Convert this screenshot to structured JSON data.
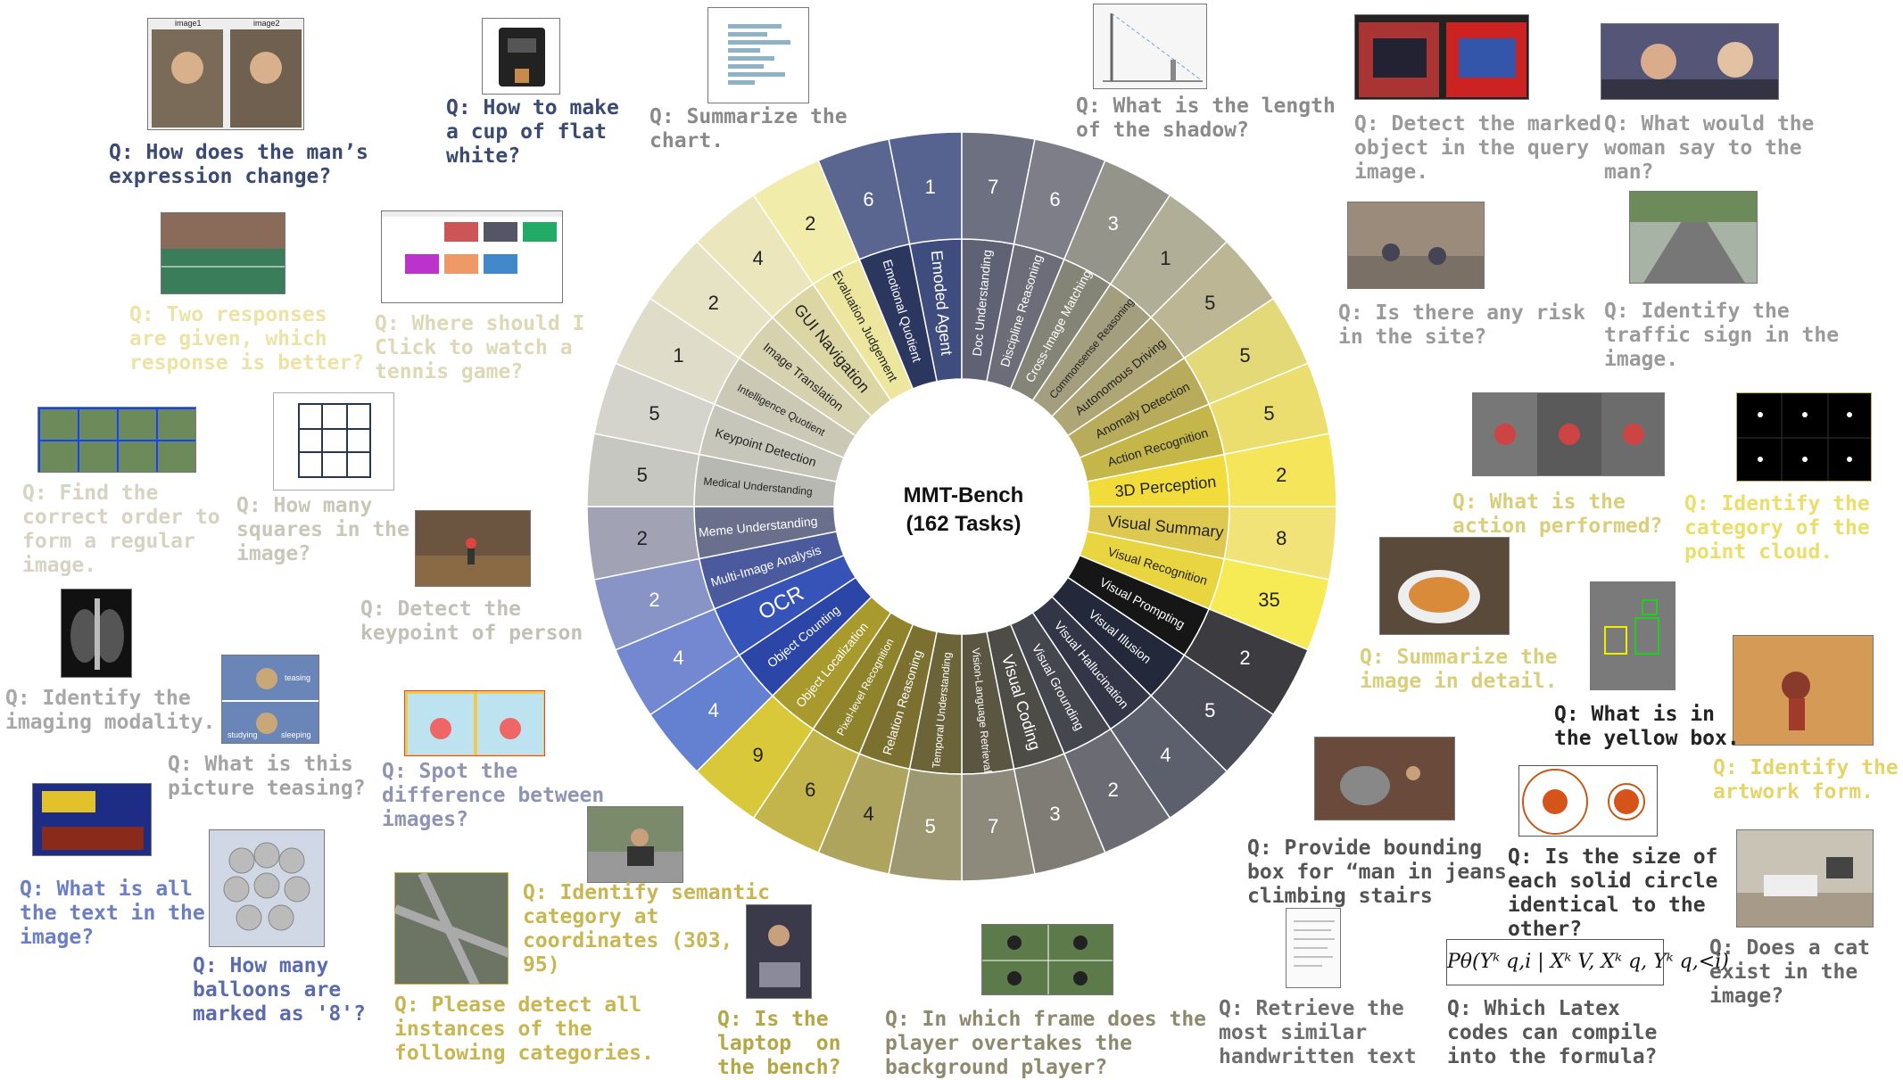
{
  "center": {
    "line1": "MMT-Bench",
    "line2": "(162 Tasks)"
  },
  "colors": {
    "dark_blue_text": "#3b4a72",
    "yellow_text": "#d9cf7a",
    "gray_text": "#8a8a8a",
    "olive_text": "#b5a646",
    "blue_text": "#6b7fc4"
  },
  "chart_data": {
    "type": "sunburst",
    "inner_ring": [
      {
        "name": "Emoded Agent",
        "outer": [
          1
        ],
        "fill": "#3e4d7d"
      },
      {
        "name": "Doc Understanding",
        "outer": [
          7
        ],
        "fill": "#5e6274"
      },
      {
        "name": "Discipline Reasoning",
        "outer": [
          6
        ],
        "fill": "#6c6d78"
      },
      {
        "name": "Cross-Image Matching",
        "outer": [
          3
        ],
        "fill": "#858577"
      },
      {
        "name": "Commonsense Reasoning",
        "outer": [
          1
        ],
        "fill": "#a39e7d"
      },
      {
        "name": "Autonomous Driving",
        "outer": [
          5
        ],
        "fill": "#aea676"
      },
      {
        "name": "Anomaly Detection",
        "outer": [
          5
        ],
        "fill": "#b8ac5c"
      },
      {
        "name": "Action Recognition",
        "outer": [
          5
        ],
        "fill": "#c5b64a"
      },
      {
        "name": "3D Perception",
        "outer": [
          2
        ],
        "fill": "#f1dc3c"
      },
      {
        "name": "Visual Summary",
        "outer": [
          8
        ],
        "fill": "#ddc852"
      },
      {
        "name": "Visual Recognition",
        "outer": [
          35
        ],
        "fill": "#e9d540"
      },
      {
        "name": "Visual Prompting",
        "outer": [
          2
        ],
        "fill": "#161616"
      },
      {
        "name": "Visual Illusion",
        "outer": [
          5
        ],
        "fill": "#23283a"
      },
      {
        "name": "Visual Hallucination",
        "outer": [
          4
        ],
        "fill": "#333646"
      },
      {
        "name": "Visual Grounding",
        "outer": [
          2
        ],
        "fill": "#45474f"
      },
      {
        "name": "Visual Coding",
        "outer": [
          3
        ],
        "fill": "#4d4c47"
      },
      {
        "name": "Vision-Language Retrieval",
        "outer": [
          7
        ],
        "fill": "#5a5642"
      },
      {
        "name": "Temporal Understanding",
        "outer": [
          5
        ],
        "fill": "#6b6438"
      },
      {
        "name": "Relation Reasoning",
        "outer": [
          4
        ],
        "fill": "#7b7030"
      },
      {
        "name": "Pixel-level Recognition",
        "outer": [
          6
        ],
        "fill": "#8f832b"
      },
      {
        "name": "Object Localization",
        "outer": [
          9
        ],
        "fill": "#a89a2c"
      },
      {
        "name": "Object Counting",
        "outer": [
          4
        ],
        "fill": "#2c46a8"
      },
      {
        "name": "OCR",
        "outer": [
          4
        ],
        "fill": "#3653b8"
      },
      {
        "name": "Multi-Image Analysis",
        "outer": [
          2
        ],
        "fill": "#4a5a9d"
      },
      {
        "name": "Meme Understanding",
        "outer": [
          2
        ],
        "fill": "#6a6f8c"
      },
      {
        "name": "Medical Understanding",
        "outer": [
          5
        ],
        "fill": "#b8b8b2"
      },
      {
        "name": "Keypoint Detection",
        "outer": [
          5
        ],
        "fill": "#c7c6ba"
      },
      {
        "name": "Intelligence Quotient",
        "outer": [
          1
        ],
        "fill": "#cbc9b6"
      },
      {
        "name": "Image Translation",
        "outer": [
          2
        ],
        "fill": "#d6d2af"
      },
      {
        "name": "GUI Navigation",
        "outer": [
          4
        ],
        "fill": "#dcd6a4"
      },
      {
        "name": "Evaluation Judgement",
        "outer": [
          2
        ],
        "fill": "#ece69f"
      },
      {
        "name": "Emotional Quotient",
        "outer": [
          6
        ],
        "fill": "#2c3760"
      }
    ],
    "outer_fills": [
      "#56628f",
      "#6c7081",
      "#7d7e88",
      "#94948a",
      "#b1ae98",
      "#bcb694",
      "#e3d978",
      "#ecde6e",
      "#f5e55a",
      "#f1e377",
      "#f7eb55",
      "#3c3c40",
      "#4a4d57",
      "#5c5f6c",
      "#6a6b73",
      "#7e7c74",
      "#8d8a7c",
      "#9e9872",
      "#aea45e",
      "#c3b54c",
      "#d9c93a",
      "#6480d0",
      "#7388d0",
      "#8894c5",
      "#a1a2b3",
      "#c7c7c2",
      "#d5d4cc",
      "#dfdcc9",
      "#e6e2c4",
      "#ece6bc",
      "#f2ecaa",
      "#5b6690"
    ]
  },
  "questions": [
    {
      "id": "q-expression",
      "text": "Q: How does the man’s\nexpression change?",
      "color": "#3b4a72"
    },
    {
      "id": "q-flat-white",
      "text": "Q: How to make\na cup of flat\nwhite?",
      "color": "#3b4a72"
    },
    {
      "id": "q-summarize-chart",
      "text": "Q: Summarize the\nchart.",
      "color": "#8a8a8a"
    },
    {
      "id": "q-shadow",
      "text": "Q: What is the length\nof the shadow?",
      "color": "#8a8a8a"
    },
    {
      "id": "q-marked-object",
      "text": "Q: Detect the marked\nobject in the query\nimage.",
      "color": "#9a9a9a"
    },
    {
      "id": "q-woman-say",
      "text": "Q: What would the\nwoman say to the\nman?",
      "color": "#9a9a9a"
    },
    {
      "id": "q-two-responses",
      "text": "Q: Two responses\nare given, which\nresponse is better?",
      "color": "#ece4a6"
    },
    {
      "id": "q-tennis",
      "text": "Q: Where should I\nClick to watch a\ntennis game?",
      "color": "#ddd8b6"
    },
    {
      "id": "q-risk",
      "text": "Q: Is there any risk\nin the site?",
      "color": "#9a9a9a"
    },
    {
      "id": "q-traffic-sign",
      "text": "Q: Identify the\ntraffic sign in the\nimage.",
      "color": "#9a9a9a"
    },
    {
      "id": "q-regular-image",
      "text": "Q: Find the\ncorrect order to\nform a regular\nimage.",
      "color": "#d6d3c3"
    },
    {
      "id": "q-squares",
      "text": "Q: How many\nsquares in the\nimage?",
      "color": "#c9c7b8"
    },
    {
      "id": "q-action",
      "text": "Q: What is the\naction performed?",
      "color": "#d9cf7a"
    },
    {
      "id": "q-point-cloud",
      "text": "Q: Identify the\ncategory of the\npoint cloud.",
      "color": "#ebde6a"
    },
    {
      "id": "q-keypoint",
      "text": "Q: Detect the\nkeypoint of person",
      "color": "#c2c1b8"
    },
    {
      "id": "q-summarize-image",
      "text": "Q: Summarize the\nimage in detail.",
      "color": "#d9cf7a"
    },
    {
      "id": "q-imaging-modality",
      "text": "Q: Identify the\nimaging modality.",
      "color": "#a8a8a8"
    },
    {
      "id": "q-teasing",
      "text": "Q: What is this\npicture teasing?",
      "color": "#a3a3a3"
    },
    {
      "id": "q-yellow-box",
      "text": "Q: What is in\nthe yellow box.",
      "color": "#222222"
    },
    {
      "id": "q-artwork",
      "text": "Q: Identify the\nartwork form.",
      "color": "#e4d56a"
    },
    {
      "id": "q-spot-difference",
      "text": "Q: Spot the\ndifference between\nimages?",
      "color": "#8f94b3"
    },
    {
      "id": "q-all-text",
      "text": "Q: What is all\nthe text in the\nimage?",
      "color": "#6b7fc4"
    },
    {
      "id": "q-balloons",
      "text": "Q: How many\nballoons are\nmarked as '8'?",
      "color": "#5a6cae"
    },
    {
      "id": "q-semantic",
      "text": "Q: Identify semantic\ncategory at\ncoordinates (303,\n95)",
      "color": "#c7b652"
    },
    {
      "id": "q-detect-instances",
      "text": "Q: Please detect all\ninstances of the\nfollowing categories.",
      "color": "#c7b652"
    },
    {
      "id": "q-laptop",
      "text": "Q: Is the\nlaptop  on\nthe bench?",
      "color": "#b5a646"
    },
    {
      "id": "q-overtakes",
      "text": "Q: In which frame does the\nplayer overtakes the\nbackground player?",
      "color": "#8e8a6e"
    },
    {
      "id": "q-bounding-box",
      "text": "Q: Provide bounding\nbox for “man in jeans\nclimbing stairs",
      "color": "#555555"
    },
    {
      "id": "q-circle-size",
      "text": "Q: Is the size of\neach solid circle\nidentical to the\nother?",
      "color": "#3a3a3a"
    },
    {
      "id": "q-cat",
      "text": "Q: Does a cat\nexist in the\nimage?",
      "color": "#666666"
    },
    {
      "id": "q-handwritten",
      "text": "Q: Retrieve the\nmost similar\nhandwritten text",
      "color": "#6e6e6e"
    },
    {
      "id": "q-latex",
      "text": "Q: Which Latex\ncodes can compile\ninto the formula?",
      "color": "#585858"
    }
  ],
  "thumbnail_labels": {
    "image1": "image1",
    "image2": "image2",
    "teasing_top": "teasing",
    "teasing_bottom": "studying",
    "teasing_right": "sleeping"
  },
  "formula": "Pθ(Yᵏ q,i | Xᵏ V, Xᵏ q, Yᵏ q,<i)"
}
